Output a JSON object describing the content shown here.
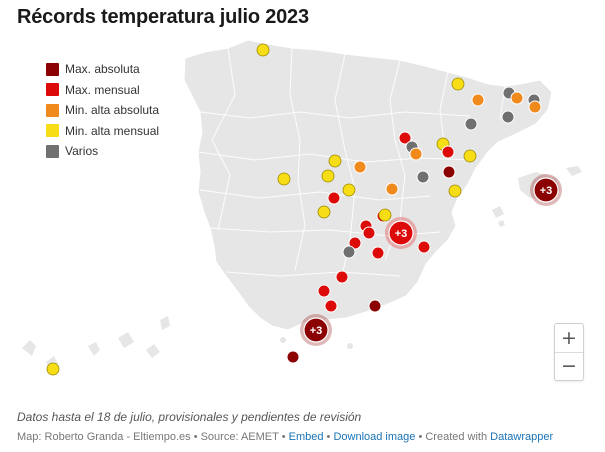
{
  "title": "Récords temperatura julio 2023",
  "legend": [
    {
      "label": "Max. absoluta",
      "color": "#8b0000"
    },
    {
      "label": "Max. mensual",
      "color": "#dd0a0a"
    },
    {
      "label": "Min. alta absoluta",
      "color": "#f08a1c"
    },
    {
      "label": "Min. alta mensual",
      "color": "#f7dd16"
    },
    {
      "label": "Varios",
      "color": "#707070"
    }
  ],
  "clusters": [
    {
      "label": "+3",
      "category": 1
    },
    {
      "label": "+3",
      "category": 0
    },
    {
      "label": "+3",
      "category": 0
    }
  ],
  "zoom": {
    "in": "+",
    "out": "−"
  },
  "note": "Datos hasta el 18 de julio, provisionales y pendientes de revisión",
  "footer": {
    "credit": "Map: Roberto Granda - Eltiempo.es • Source: AEMET • ",
    "embed": "Embed",
    "sep1": " • ",
    "download": "Download image",
    "sep2": " • Created with ",
    "datawrapper": "Datawrapper"
  },
  "colors": {
    "land": "#e6e6e6",
    "border": "#ffffff"
  }
}
